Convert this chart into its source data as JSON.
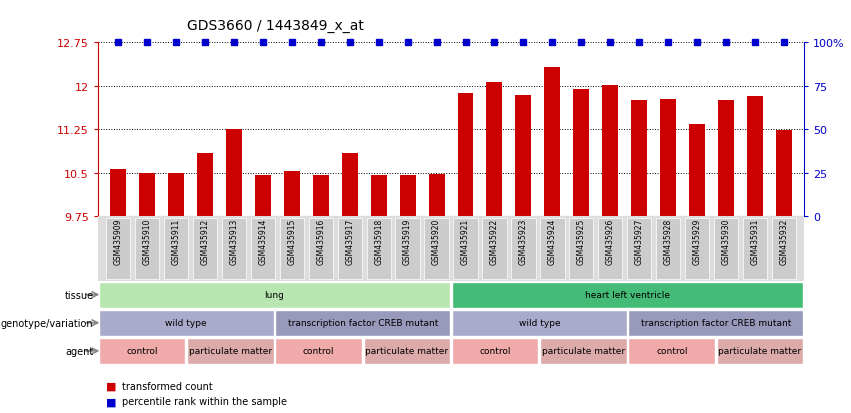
{
  "title": "GDS3660 / 1443849_x_at",
  "samples": [
    "GSM435909",
    "GSM435910",
    "GSM435911",
    "GSM435912",
    "GSM435913",
    "GSM435914",
    "GSM435915",
    "GSM435916",
    "GSM435917",
    "GSM435918",
    "GSM435919",
    "GSM435920",
    "GSM435921",
    "GSM435922",
    "GSM435923",
    "GSM435924",
    "GSM435925",
    "GSM435926",
    "GSM435927",
    "GSM435928",
    "GSM435929",
    "GSM435930",
    "GSM435931",
    "GSM435932"
  ],
  "bar_values": [
    10.57,
    10.49,
    10.49,
    10.84,
    11.25,
    10.47,
    10.53,
    10.47,
    10.84,
    10.46,
    10.47,
    10.48,
    11.88,
    12.07,
    11.85,
    12.32,
    11.94,
    12.01,
    11.75,
    11.78,
    11.35,
    11.76,
    11.83,
    11.24
  ],
  "ymin": 9.75,
  "ymax": 12.75,
  "yticks": [
    9.75,
    10.5,
    11.25,
    12.0,
    12.75
  ],
  "ytick_labels": [
    "9.75",
    "10.5",
    "11.25",
    "12",
    "12.75"
  ],
  "right_yticks": [
    0,
    25,
    50,
    75,
    100
  ],
  "right_ytick_labels": [
    "0",
    "25",
    "50",
    "75",
    "100%"
  ],
  "bar_color": "#cc0000",
  "dot_color": "#0000cc",
  "left_tick_color": "#cc0000",
  "right_tick_color": "#0000cc",
  "tissue_row": {
    "label": "tissue",
    "segments": [
      {
        "text": "lung",
        "start": 0,
        "end": 12,
        "color": "#b8e6b0"
      },
      {
        "text": "heart left ventricle",
        "start": 12,
        "end": 24,
        "color": "#44bb77"
      }
    ]
  },
  "genotype_row": {
    "label": "genotype/variation",
    "segments": [
      {
        "text": "wild type",
        "start": 0,
        "end": 6,
        "color": "#aaaacc"
      },
      {
        "text": "transcription factor CREB mutant",
        "start": 6,
        "end": 12,
        "color": "#9999bb"
      },
      {
        "text": "wild type",
        "start": 12,
        "end": 18,
        "color": "#aaaacc"
      },
      {
        "text": "transcription factor CREB mutant",
        "start": 18,
        "end": 24,
        "color": "#9999bb"
      }
    ]
  },
  "agent_row": {
    "label": "agent",
    "segments": [
      {
        "text": "control",
        "start": 0,
        "end": 3,
        "color": "#f0aaaa"
      },
      {
        "text": "particulate matter",
        "start": 3,
        "end": 6,
        "color": "#ddaaaa"
      },
      {
        "text": "control",
        "start": 6,
        "end": 9,
        "color": "#f0aaaa"
      },
      {
        "text": "particulate matter",
        "start": 9,
        "end": 12,
        "color": "#ddaaaa"
      },
      {
        "text": "control",
        "start": 12,
        "end": 15,
        "color": "#f0aaaa"
      },
      {
        "text": "particulate matter",
        "start": 15,
        "end": 18,
        "color": "#ddaaaa"
      },
      {
        "text": "control",
        "start": 18,
        "end": 21,
        "color": "#f0aaaa"
      },
      {
        "text": "particulate matter",
        "start": 21,
        "end": 24,
        "color": "#ddaaaa"
      }
    ]
  },
  "legend_items": [
    {
      "color": "#cc0000",
      "label": "transformed count"
    },
    {
      "color": "#0000cc",
      "label": "percentile rank within the sample"
    }
  ],
  "label_color": "#888888",
  "arrow_color": "#888888",
  "xticklabel_bg": "#dddddd"
}
